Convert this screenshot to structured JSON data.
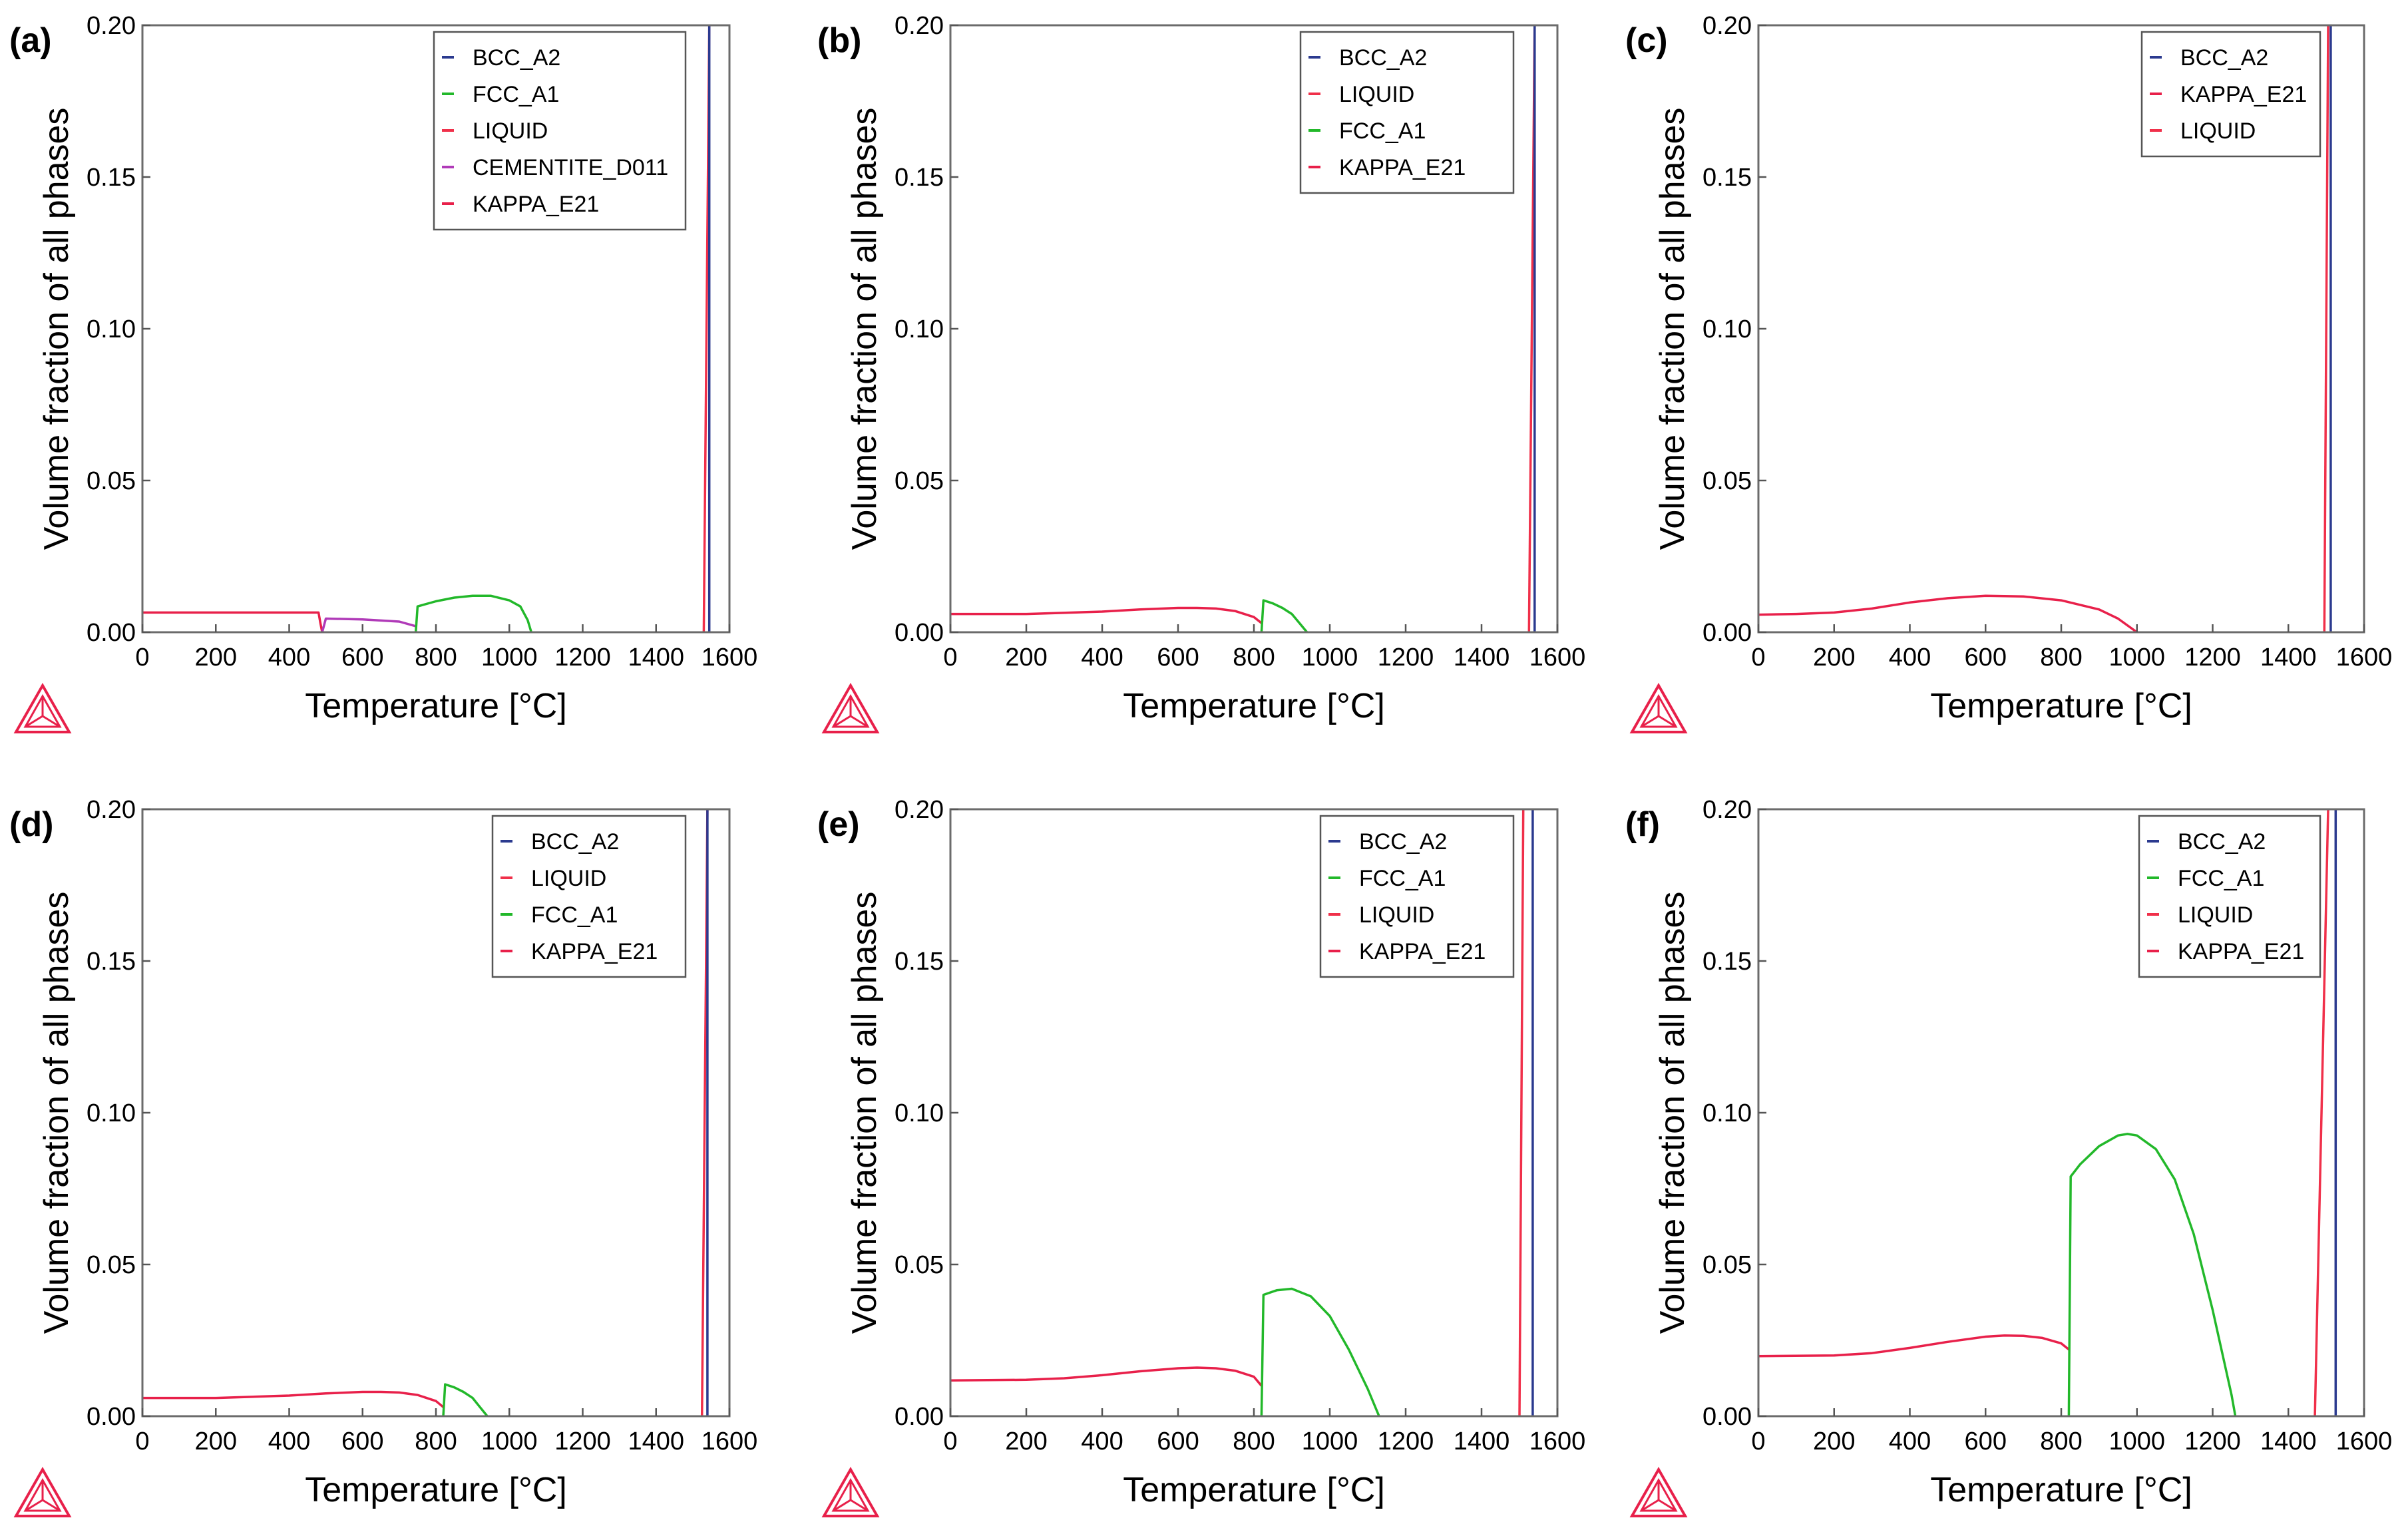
{
  "figure": {
    "x_axis_label": "Temperature  [°C]",
    "y_axis_label": "Volume fraction of all phases",
    "x_ticks": [
      "0",
      "200",
      "400",
      "600",
      "800",
      "1000",
      "1200",
      "1400",
      "1600"
    ],
    "y_ticks": [
      "0.00",
      "0.05",
      "0.10",
      "0.15",
      "0.20"
    ],
    "logo_icon": "thermo-calc-triangle-icon",
    "colors": {
      "BCC_A2": "#2b3a8f",
      "FCC_A1": "#22b82a",
      "LIQUID": "#f0304a",
      "CEMENTITE_D011": "#b03ab8",
      "KAPPA_E21": "#e8204a",
      "frame": "#6b6b6b"
    }
  },
  "chart_data": [
    {
      "panel": "(a)",
      "type": "line",
      "xlabel": "Temperature  [°C]",
      "ylabel": "Volume fraction of all phases",
      "xlim": [
        0,
        1600
      ],
      "ylim": [
        0,
        0.2
      ],
      "legend": [
        "BCC_A2",
        "FCC_A1",
        "LIQUID",
        "CEMENTITE_D011",
        "KAPPA_E21"
      ],
      "legend_position": "top-right",
      "series": [
        {
          "name": "KAPPA_E21",
          "x": [
            0,
            480,
            485,
            490
          ],
          "y": [
            0.0065,
            0.0065,
            0.003,
            0.0
          ]
        },
        {
          "name": "CEMENTITE_D011",
          "x": [
            490,
            500,
            600,
            700,
            745
          ],
          "y": [
            0.0,
            0.0045,
            0.0042,
            0.0035,
            0.002
          ]
        },
        {
          "name": "FCC_A1",
          "x": [
            745,
            750,
            800,
            850,
            900,
            950,
            1000,
            1030,
            1050,
            1060
          ],
          "y": [
            0.0,
            0.0085,
            0.0102,
            0.0114,
            0.012,
            0.012,
            0.0105,
            0.0085,
            0.004,
            0.0
          ]
        },
        {
          "name": "LIQUID",
          "x": [
            1530,
            1545
          ],
          "y": [
            0.0,
            0.2
          ]
        },
        {
          "name": "BCC_A2",
          "x": [
            1545,
            1545
          ],
          "y": [
            0.0,
            0.2
          ]
        }
      ]
    },
    {
      "panel": "(b)",
      "type": "line",
      "xlabel": "Temperature  [°C]",
      "ylabel": "Volume fraction of all phases",
      "xlim": [
        0,
        1600
      ],
      "ylim": [
        0,
        0.2
      ],
      "legend": [
        "BCC_A2",
        "LIQUID",
        "FCC_A1",
        "KAPPA_E21"
      ],
      "legend_position": "top-right",
      "series": [
        {
          "name": "KAPPA_E21",
          "x": [
            0,
            200,
            400,
            500,
            600,
            650,
            700,
            750,
            800,
            820
          ],
          "y": [
            0.006,
            0.006,
            0.0068,
            0.0075,
            0.008,
            0.008,
            0.0078,
            0.007,
            0.005,
            0.003
          ]
        },
        {
          "name": "FCC_A1",
          "x": [
            820,
            825,
            850,
            875,
            900,
            920,
            940
          ],
          "y": [
            0.0,
            0.0105,
            0.0095,
            0.008,
            0.006,
            0.003,
            0.0
          ]
        },
        {
          "name": "LIQUID",
          "x": [
            1525,
            1540
          ],
          "y": [
            0.0,
            0.2
          ]
        },
        {
          "name": "BCC_A2",
          "x": [
            1540,
            1540
          ],
          "y": [
            0.0,
            0.2
          ]
        }
      ]
    },
    {
      "panel": "(c)",
      "type": "line",
      "xlabel": "Temperature  [°C]",
      "ylabel": "Volume fraction of all phases",
      "xlim": [
        0,
        1600
      ],
      "ylim": [
        0,
        0.2
      ],
      "legend": [
        "BCC_A2",
        "KAPPA_E21",
        "LIQUID"
      ],
      "legend_position": "top-right",
      "series": [
        {
          "name": "KAPPA_E21",
          "x": [
            0,
            100,
            200,
            300,
            400,
            500,
            600,
            700,
            800,
            900,
            950,
            1000
          ],
          "y": [
            0.0058,
            0.006,
            0.0065,
            0.0078,
            0.0098,
            0.0112,
            0.012,
            0.0118,
            0.0105,
            0.0075,
            0.0045,
            0.0
          ]
        },
        {
          "name": "LIQUID",
          "x": [
            1495,
            1505
          ],
          "y": [
            0.0,
            0.2
          ]
        },
        {
          "name": "BCC_A2",
          "x": [
            1512,
            1512
          ],
          "y": [
            0.0,
            0.2
          ]
        }
      ]
    },
    {
      "panel": "(d)",
      "type": "line",
      "xlabel": "Temperature  [°C]",
      "ylabel": "Volume fraction of all phases",
      "xlim": [
        0,
        1600
      ],
      "ylim": [
        0,
        0.2
      ],
      "legend": [
        "BCC_A2",
        "LIQUID",
        "FCC_A1",
        "KAPPA_E21"
      ],
      "legend_position": "top-right",
      "series": [
        {
          "name": "KAPPA_E21",
          "x": [
            0,
            200,
            400,
            500,
            600,
            650,
            700,
            750,
            800,
            820
          ],
          "y": [
            0.006,
            0.006,
            0.0068,
            0.0075,
            0.008,
            0.008,
            0.0078,
            0.007,
            0.005,
            0.003
          ]
        },
        {
          "name": "FCC_A1",
          "x": [
            820,
            825,
            850,
            875,
            900,
            920,
            940
          ],
          "y": [
            0.0,
            0.0105,
            0.0095,
            0.008,
            0.006,
            0.003,
            0.0
          ]
        },
        {
          "name": "LIQUID",
          "x": [
            1525,
            1540
          ],
          "y": [
            0.0,
            0.2
          ]
        },
        {
          "name": "BCC_A2",
          "x": [
            1540,
            1540
          ],
          "y": [
            0.0,
            0.2
          ]
        }
      ]
    },
    {
      "panel": "(e)",
      "type": "line",
      "xlabel": "Temperature  [°C]",
      "ylabel": "Volume fraction of all phases",
      "xlim": [
        0,
        1600
      ],
      "ylim": [
        0,
        0.2
      ],
      "legend": [
        "BCC_A2",
        "FCC_A1",
        "LIQUID",
        "KAPPA_E21"
      ],
      "legend_position": "top-right",
      "series": [
        {
          "name": "KAPPA_E21",
          "x": [
            0,
            200,
            300,
            400,
            500,
            600,
            650,
            700,
            750,
            800,
            820
          ],
          "y": [
            0.0118,
            0.012,
            0.0125,
            0.0135,
            0.0148,
            0.0158,
            0.016,
            0.0158,
            0.015,
            0.013,
            0.01
          ]
        },
        {
          "name": "FCC_A1",
          "x": [
            820,
            825,
            860,
            900,
            950,
            1000,
            1050,
            1100,
            1130
          ],
          "y": [
            0.0,
            0.04,
            0.0415,
            0.042,
            0.0395,
            0.033,
            0.022,
            0.009,
            0.0
          ]
        },
        {
          "name": "LIQUID",
          "x": [
            1500,
            1510
          ],
          "y": [
            0.0,
            0.2
          ]
        },
        {
          "name": "BCC_A2",
          "x": [
            1535,
            1535
          ],
          "y": [
            0.0,
            0.2
          ]
        }
      ]
    },
    {
      "panel": "(f)",
      "type": "line",
      "xlabel": "Temperature  [°C]",
      "ylabel": "Volume fraction of all phases",
      "xlim": [
        0,
        1600
      ],
      "ylim": [
        0,
        0.2
      ],
      "legend": [
        "BCC_A2",
        "FCC_A1",
        "LIQUID",
        "KAPPA_E21"
      ],
      "legend_position": "top-right",
      "series": [
        {
          "name": "KAPPA_E21",
          "x": [
            0,
            200,
            300,
            400,
            500,
            600,
            650,
            700,
            750,
            800,
            820
          ],
          "y": [
            0.0198,
            0.02,
            0.0208,
            0.0225,
            0.0245,
            0.0262,
            0.0266,
            0.0265,
            0.0258,
            0.024,
            0.022
          ]
        },
        {
          "name": "FCC_A1",
          "x": [
            820,
            825,
            850,
            900,
            950,
            975,
            1000,
            1050,
            1100,
            1150,
            1200,
            1250,
            1260
          ],
          "y": [
            0.0,
            0.079,
            0.083,
            0.089,
            0.0925,
            0.093,
            0.0925,
            0.088,
            0.078,
            0.06,
            0.035,
            0.007,
            0.0
          ]
        },
        {
          "name": "LIQUID",
          "x": [
            1470,
            1505
          ],
          "y": [
            0.0,
            0.2
          ]
        },
        {
          "name": "BCC_A2",
          "x": [
            1525,
            1525
          ],
          "y": [
            0.0,
            0.2
          ]
        }
      ]
    }
  ]
}
